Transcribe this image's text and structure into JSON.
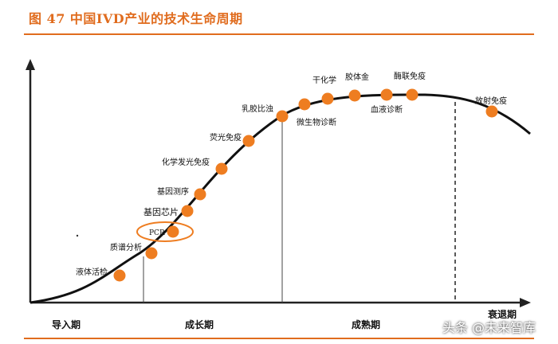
{
  "header": {
    "title": "图 47 中国IVD产业的技术生命周期"
  },
  "diagram": {
    "colors": {
      "accent": "#e06c1e",
      "dot": "#ee7d21",
      "curve": "#111111",
      "axis": "#222222"
    },
    "stages": [
      {
        "label": "导入期"
      },
      {
        "label": "成长期"
      },
      {
        "label": "成熟期"
      },
      {
        "label": "衰退期"
      }
    ],
    "technologies": [
      {
        "label": "液体活检"
      },
      {
        "label": "质谱分析"
      },
      {
        "label": "PCR"
      },
      {
        "label": "基因芯片"
      },
      {
        "label": "基因测序"
      },
      {
        "label": "化学发光免疫"
      },
      {
        "label": "荧光免疫"
      },
      {
        "label": "乳胶比浊"
      },
      {
        "label": "微生物诊断"
      },
      {
        "label": "干化学"
      },
      {
        "label": "胶体金"
      },
      {
        "label": "血液诊断"
      },
      {
        "label": "酶联免疫"
      },
      {
        "label": "放射免疫"
      }
    ]
  },
  "watermark": {
    "text": "头条 @未来智库"
  }
}
